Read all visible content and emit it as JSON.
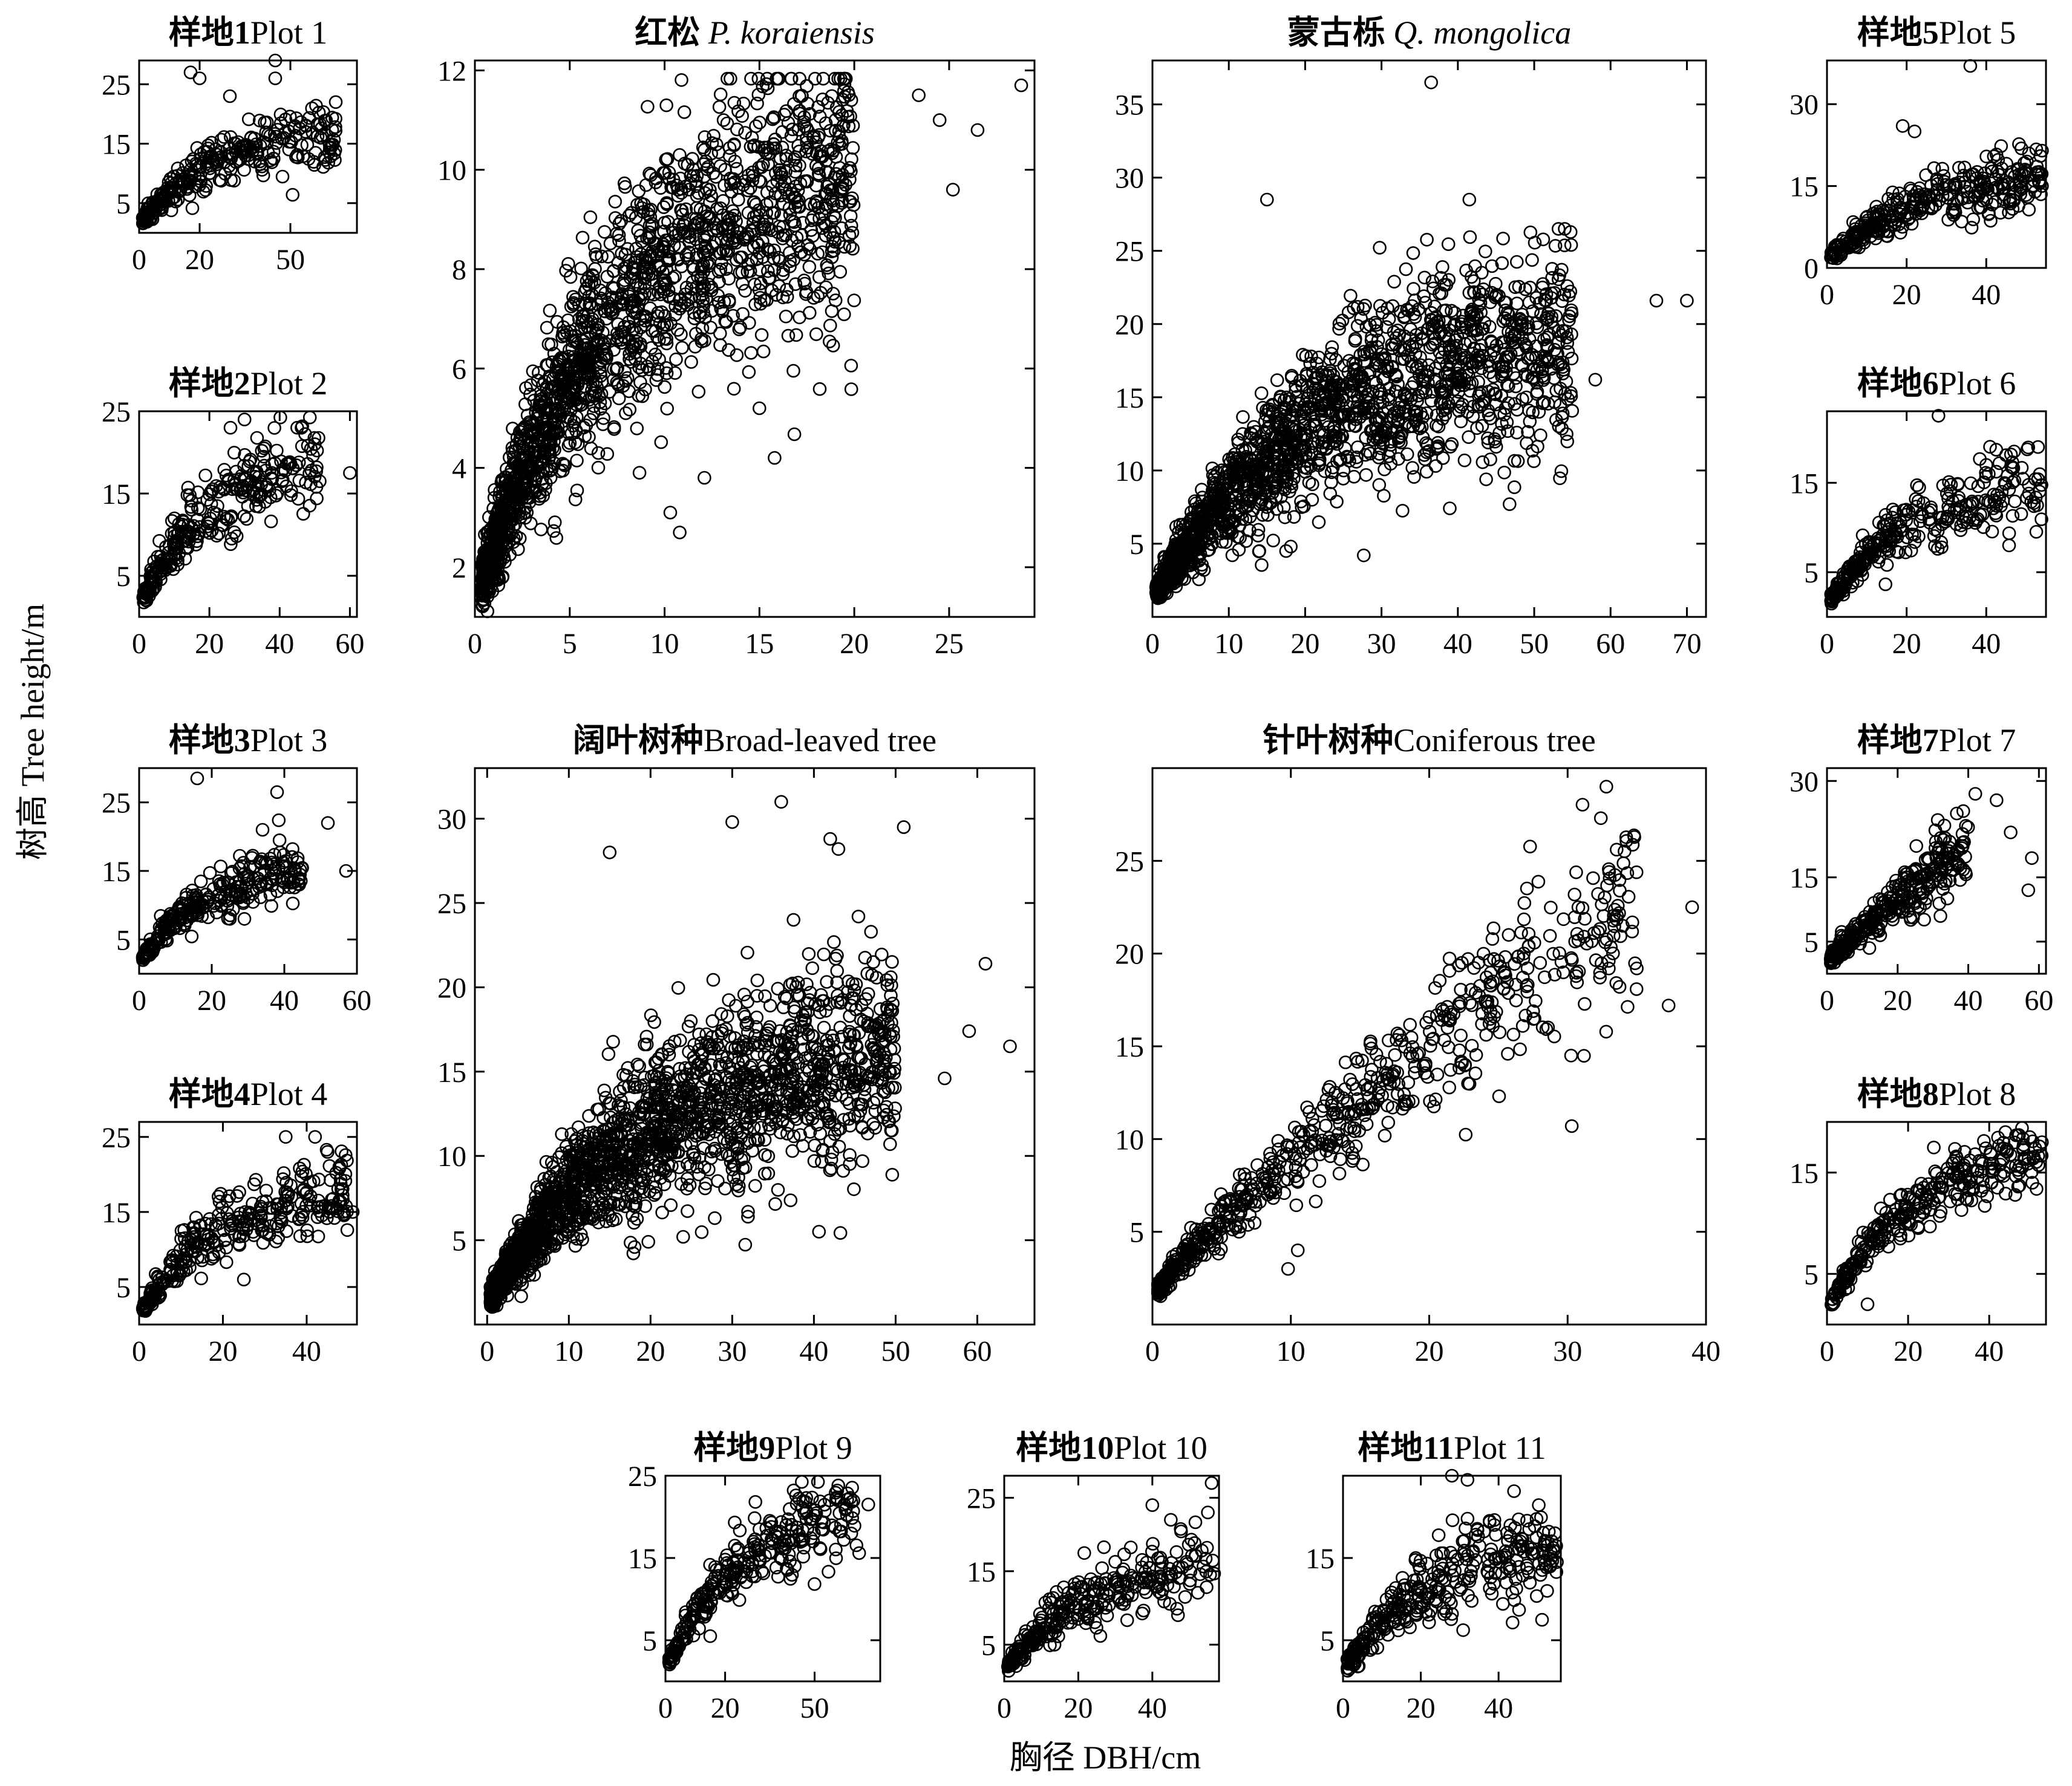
{
  "figure": {
    "y_axis_title": "树高 Tree height/m",
    "x_axis_title": "胸径 DBH/cm"
  },
  "chart_data": [
    {
      "id": "plot1",
      "type": "scatter",
      "title_cn": "样地1",
      "title_en": "Plot 1",
      "xlim": [
        0,
        72
      ],
      "ylim": [
        0,
        29
      ],
      "xticks": [
        0,
        20,
        50
      ],
      "yticks": [
        5,
        15,
        25
      ],
      "trend": "saturating",
      "ymax_fit": 18,
      "x_end": 65,
      "spread": 0.17,
      "n": 320,
      "outliers": [
        [
          45,
          29
        ],
        [
          17,
          27
        ],
        [
          20,
          26
        ],
        [
          45,
          26
        ],
        [
          30,
          23
        ],
        [
          65,
          22
        ],
        [
          60,
          16
        ],
        [
          55,
          17
        ]
      ]
    },
    {
      "id": "koraiensis",
      "type": "scatter",
      "title_cn": "红松",
      "title_en": "P. koraiensis",
      "italic": true,
      "xlim": [
        0,
        29.5
      ],
      "ylim": [
        1,
        12.2
      ],
      "xticks": [
        0,
        5,
        10,
        15,
        20,
        25
      ],
      "yticks": [
        2,
        4,
        6,
        8,
        10,
        12
      ],
      "trend": "saturating",
      "ymax_fit": 10.5,
      "x_end": 20,
      "spread": 0.16,
      "n": 1800,
      "outliers": [
        [
          28.8,
          11.7
        ],
        [
          26.5,
          10.8
        ],
        [
          24.5,
          11.0
        ],
        [
          25.2,
          9.6
        ],
        [
          23.4,
          11.5
        ],
        [
          15.8,
          4.2
        ],
        [
          15,
          5.2
        ],
        [
          10.3,
          3.1
        ],
        [
          10.8,
          2.7
        ],
        [
          12.1,
          3.8
        ]
      ]
    },
    {
      "id": "mongolica",
      "type": "scatter",
      "title_cn": "蒙古栎",
      "title_en": "Q. mongolica",
      "italic": true,
      "xlim": [
        0,
        72.5
      ],
      "ylim": [
        0,
        38
      ],
      "xticks": [
        0,
        10,
        20,
        30,
        40,
        50,
        60,
        70
      ],
      "yticks": [
        5,
        10,
        15,
        20,
        25,
        30,
        35
      ],
      "trend": "saturating",
      "ymax_fit": 20,
      "x_end": 55,
      "spread": 0.2,
      "n": 1800,
      "outliers": [
        [
          36.5,
          36.5
        ],
        [
          15,
          28.5
        ],
        [
          41.5,
          28.5
        ],
        [
          66,
          21.6
        ],
        [
          70,
          21.6
        ],
        [
          58,
          16.2
        ],
        [
          54,
          26.5
        ],
        [
          17.5,
          4.5
        ],
        [
          14,
          4.5
        ]
      ]
    },
    {
      "id": "plot5",
      "type": "scatter",
      "title_cn": "样地5",
      "title_en": "Plot 5",
      "xlim": [
        0,
        55
      ],
      "ylim": [
        0,
        38
      ],
      "xticks": [
        0,
        20,
        40
      ],
      "yticks": [
        0,
        15,
        30
      ],
      "trend": "saturating",
      "ymax_fit": 17,
      "x_end": 55,
      "spread": 0.2,
      "n": 350,
      "outliers": [
        [
          36,
          37
        ],
        [
          19,
          26
        ],
        [
          22,
          25
        ],
        [
          52,
          16
        ],
        [
          54,
          15
        ]
      ]
    },
    {
      "id": "plot2",
      "type": "scatter",
      "title_cn": "样地2",
      "title_en": "Plot 2",
      "xlim": [
        0,
        62
      ],
      "ylim": [
        0,
        25
      ],
      "xticks": [
        0,
        20,
        40,
        60
      ],
      "yticks": [
        5,
        15,
        25
      ],
      "trend": "saturating",
      "ymax_fit": 20,
      "x_end": 52,
      "spread": 0.17,
      "n": 320,
      "outliers": [
        [
          60,
          17.5
        ],
        [
          45,
          23
        ],
        [
          30,
          24
        ],
        [
          50,
          21
        ],
        [
          26,
          23
        ]
      ]
    },
    {
      "id": "plot6",
      "type": "scatter",
      "title_cn": "样地6",
      "title_en": "Plot 6",
      "xlim": [
        0,
        55
      ],
      "ylim": [
        0,
        23
      ],
      "xticks": [
        0,
        20,
        40
      ],
      "yticks": [
        5,
        15
      ],
      "trend": "saturating",
      "ymax_fit": 16,
      "x_end": 55,
      "spread": 0.16,
      "n": 320,
      "outliers": [
        [
          28,
          22.5
        ],
        [
          53,
          19
        ],
        [
          47,
          18.5
        ],
        [
          40,
          17
        ]
      ]
    },
    {
      "id": "plot3",
      "type": "scatter",
      "title_cn": "样地3",
      "title_en": "Plot 3",
      "xlim": [
        0,
        60
      ],
      "ylim": [
        0,
        30
      ],
      "xticks": [
        0,
        20,
        40,
        60
      ],
      "yticks": [
        5,
        15,
        25
      ],
      "trend": "saturating",
      "ymax_fit": 16,
      "x_end": 45,
      "spread": 0.14,
      "n": 300,
      "outliers": [
        [
          16,
          28.5
        ],
        [
          38,
          26.5
        ],
        [
          52,
          22
        ],
        [
          57,
          15
        ],
        [
          25,
          8
        ],
        [
          29,
          8
        ],
        [
          34,
          21
        ]
      ]
    },
    {
      "id": "broadleaved",
      "type": "scatter",
      "title_cn": "阔叶树种",
      "title_en": "Broad-leaved tree",
      "xlim": [
        -1.5,
        67
      ],
      "ylim": [
        0,
        33
      ],
      "xticks": [
        0,
        10,
        20,
        30,
        40,
        50,
        60
      ],
      "yticks": [
        5,
        10,
        15,
        20,
        25,
        30
      ],
      "trend": "saturating",
      "ymax_fit": 17,
      "x_end": 50,
      "spread": 0.2,
      "n": 2000,
      "outliers": [
        [
          36,
          31
        ],
        [
          30,
          29.8
        ],
        [
          51,
          29.5
        ],
        [
          42,
          28.8
        ],
        [
          43,
          28.2
        ],
        [
          64,
          16.5
        ],
        [
          59,
          17.4
        ],
        [
          56,
          14.6
        ],
        [
          61,
          21.4
        ],
        [
          24,
          5.2
        ],
        [
          15,
          28
        ]
      ]
    },
    {
      "id": "coniferous",
      "type": "scatter",
      "title_cn": "针叶树种",
      "title_en": "Coniferous tree",
      "xlim": [
        0,
        40
      ],
      "ylim": [
        0,
        30
      ],
      "xticks": [
        0,
        10,
        20,
        30,
        40
      ],
      "yticks": [
        5,
        10,
        15,
        20,
        25
      ],
      "trend": "power",
      "ymax_fit": 23,
      "x_end": 35,
      "spread": 0.12,
      "n": 650,
      "outliers": [
        [
          32.8,
          29
        ],
        [
          32.4,
          27.3
        ],
        [
          39,
          22.5
        ],
        [
          37.3,
          17.2
        ],
        [
          30.3,
          10.7
        ],
        [
          10.5,
          4
        ],
        [
          9.8,
          3
        ],
        [
          35,
          19.2
        ],
        [
          33,
          24.4
        ]
      ]
    },
    {
      "id": "plot7",
      "type": "scatter",
      "title_cn": "样地7",
      "title_en": "Plot 7",
      "xlim": [
        0,
        62
      ],
      "ylim": [
        0,
        32
      ],
      "xticks": [
        0,
        20,
        40,
        60
      ],
      "yticks": [
        5,
        15,
        30
      ],
      "trend": "power",
      "ymax_fit": 20,
      "x_end": 40,
      "spread": 0.17,
      "n": 330,
      "outliers": [
        [
          57,
          13
        ],
        [
          58,
          18
        ],
        [
          52,
          22
        ],
        [
          48,
          27
        ],
        [
          12,
          4
        ],
        [
          42,
          28
        ]
      ]
    },
    {
      "id": "plot4",
      "type": "scatter",
      "title_cn": "样地4",
      "title_en": "Plot 4",
      "xlim": [
        0,
        52
      ],
      "ylim": [
        0,
        27
      ],
      "xticks": [
        0,
        20,
        40
      ],
      "yticks": [
        5,
        15,
        25
      ],
      "trend": "saturating",
      "ymax_fit": 19,
      "x_end": 50,
      "spread": 0.17,
      "n": 330,
      "outliers": [
        [
          51,
          15
        ],
        [
          25,
          6
        ],
        [
          45,
          23
        ],
        [
          42,
          25
        ],
        [
          35,
          25
        ]
      ]
    },
    {
      "id": "plot8",
      "type": "scatter",
      "title_cn": "样地8",
      "title_en": "Plot 8",
      "xlim": [
        0,
        54
      ],
      "ylim": [
        0,
        20
      ],
      "xticks": [
        0,
        20,
        40
      ],
      "yticks": [
        5,
        15
      ],
      "trend": "saturating",
      "ymax_fit": 17.5,
      "x_end": 53,
      "spread": 0.12,
      "n": 320,
      "outliers": [
        [
          10,
          2
        ],
        [
          44,
          19
        ],
        [
          50,
          18.5
        ],
        [
          53,
          18
        ]
      ]
    },
    {
      "id": "plot9",
      "type": "scatter",
      "title_cn": "样地9",
      "title_en": "Plot 9",
      "xlim": [
        0,
        72
      ],
      "ylim": [
        0,
        25
      ],
      "xticks": [
        0,
        20,
        50
      ],
      "yticks": [
        5,
        15,
        25
      ],
      "trend": "saturating",
      "ymax_fit": 22,
      "x_end": 65,
      "spread": 0.13,
      "n": 320,
      "outliers": [
        [
          68,
          21.5
        ],
        [
          60,
          21.5
        ],
        [
          55,
          22
        ],
        [
          15,
          5.5
        ]
      ]
    },
    {
      "id": "plot10",
      "type": "scatter",
      "title_cn": "样地10",
      "title_en": "Plot 10",
      "xlim": [
        0,
        58
      ],
      "ylim": [
        0,
        28
      ],
      "xticks": [
        0,
        20,
        40
      ],
      "yticks": [
        5,
        15,
        25
      ],
      "trend": "saturating",
      "ymax_fit": 17,
      "x_end": 57,
      "spread": 0.18,
      "n": 320,
      "outliers": [
        [
          56,
          27
        ],
        [
          55,
          23
        ],
        [
          45,
          22
        ],
        [
          40,
          24
        ],
        [
          20,
          8.5
        ]
      ]
    },
    {
      "id": "plot11",
      "type": "scatter",
      "title_cn": "样地11",
      "title_en": "Plot 11",
      "xlim": [
        0,
        56
      ],
      "ylim": [
        0,
        25
      ],
      "xticks": [
        0,
        20,
        40
      ],
      "yticks": [
        5,
        15
      ],
      "trend": "saturating",
      "ymax_fit": 17,
      "x_end": 55,
      "spread": 0.2,
      "n": 330,
      "outliers": [
        [
          28,
          25
        ],
        [
          32,
          24.5
        ],
        [
          52,
          17
        ],
        [
          55,
          14.5
        ],
        [
          42,
          12
        ]
      ]
    }
  ]
}
